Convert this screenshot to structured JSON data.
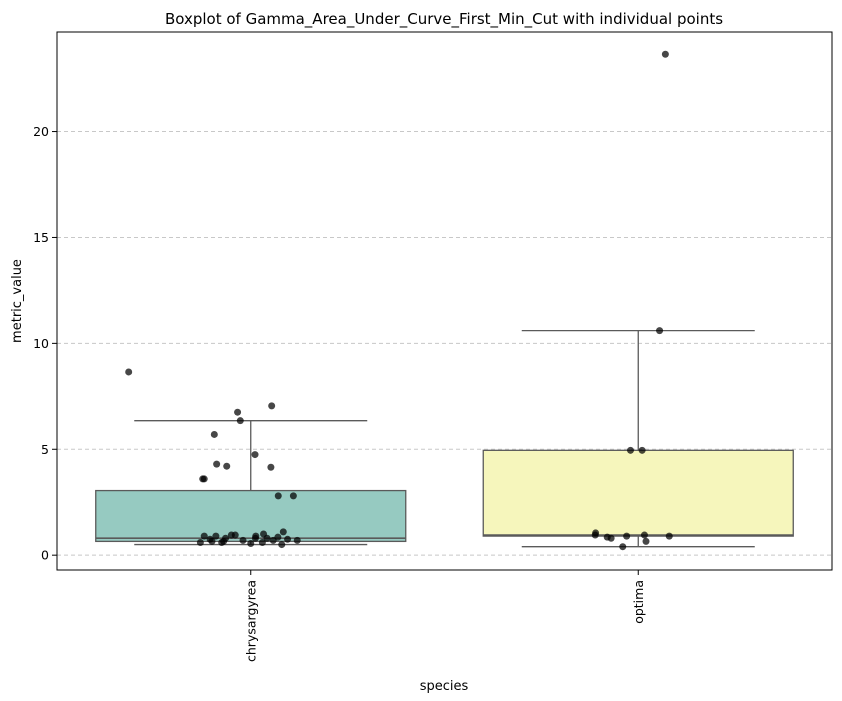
{
  "chart_data": {
    "type": "box",
    "title": "Boxplot of Gamma_Area_Under_Curve_First_Min_Cut with individual points",
    "xlabel": "species",
    "ylabel": "metric_value",
    "categories": [
      "chrysargyrea",
      "optima"
    ],
    "ylim": [
      -0.7,
      24.7
    ],
    "yticks": [
      0,
      5,
      10,
      15,
      20
    ],
    "ytick_labels": [
      "0",
      "5",
      "10",
      "15",
      "20"
    ],
    "grid": "horizontal-dashed",
    "colors": {
      "chrysargyrea": "#96cac1",
      "optima": "#f6f6bc"
    },
    "boxes": [
      {
        "category": "chrysargyrea",
        "whisker_low": 0.5,
        "q1": 0.65,
        "median": 0.8,
        "q3": 3.05,
        "whisker_high": 6.35
      },
      {
        "category": "optima",
        "whisker_low": 0.4,
        "q1": 0.9,
        "median": 0.95,
        "q3": 4.95,
        "whisker_high": 10.6
      }
    ],
    "points": [
      {
        "category": "chrysargyrea",
        "values": [
          8.65,
          7.05,
          6.75,
          6.35,
          5.7,
          4.75,
          4.3,
          4.2,
          4.15,
          3.6,
          3.6,
          2.8,
          2.8,
          1.1,
          1.0,
          0.95,
          0.95,
          0.9,
          0.9,
          0.9,
          0.85,
          0.8,
          0.8,
          0.8,
          0.75,
          0.75,
          0.7,
          0.7,
          0.7,
          0.65,
          0.65,
          0.6,
          0.6,
          0.6,
          0.55,
          0.5
        ],
        "jitter": [
          -0.315,
          0.054,
          -0.034,
          -0.027,
          -0.094,
          0.011,
          -0.088,
          -0.062,
          0.052,
          -0.12,
          -0.124,
          0.071,
          0.11,
          0.084,
          0.033,
          -0.05,
          -0.04,
          -0.12,
          -0.09,
          0.013,
          0.07,
          -0.065,
          0.042,
          0.012,
          -0.105,
          0.095,
          -0.02,
          0.058,
          0.12,
          -0.07,
          -0.1,
          -0.13,
          -0.075,
          0.03,
          0.0,
          0.08
        ]
      },
      {
        "category": "optima",
        "values": [
          23.65,
          10.6,
          4.95,
          4.95,
          1.05,
          0.95,
          0.95,
          0.9,
          0.9,
          0.85,
          0.8,
          0.65,
          0.4
        ],
        "jitter": [
          0.07,
          0.055,
          -0.02,
          0.01,
          -0.11,
          -0.111,
          0.016,
          -0.03,
          0.08,
          -0.08,
          -0.07,
          0.02,
          -0.04
        ]
      }
    ]
  }
}
